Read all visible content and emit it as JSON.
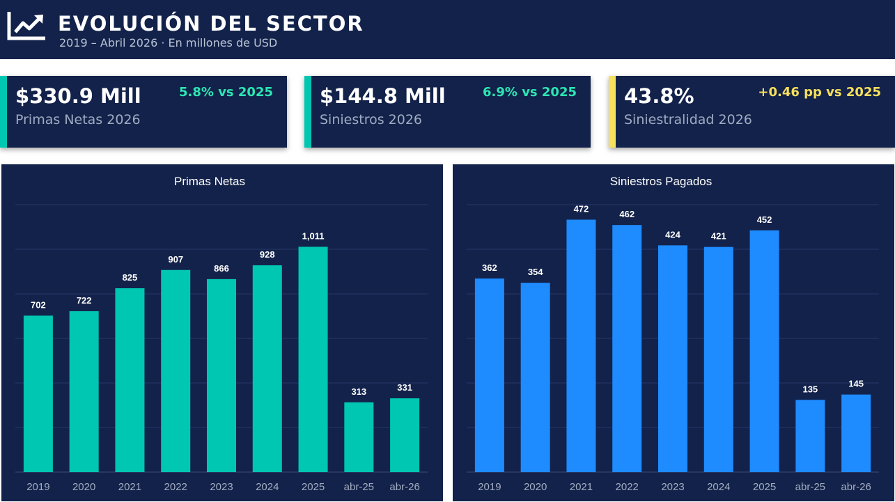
{
  "header": {
    "title": "EVOLUCIÓN DEL SECTOR",
    "subtitle": "2019 – Abril 2026 · En millones de USD",
    "icon": "trend-chart-icon"
  },
  "kpis": [
    {
      "value": "$330.9 Mill",
      "label": "Primas Netas 2026",
      "delta": "5.8% vs 2025",
      "accent_color": "#00c7b1",
      "delta_color": "#2ce6b3"
    },
    {
      "value": "$144.8 Mill",
      "label": "Siniestros 2026",
      "delta": "6.9% vs 2025",
      "accent_color": "#00c7b1",
      "delta_color": "#2ce6b3"
    },
    {
      "value": "43.8%",
      "label": "Siniestralidad 2026",
      "delta": "+0.46 pp vs 2025",
      "accent_color": "#f7e05b",
      "delta_color": "#f7e05b"
    }
  ],
  "chart_data": [
    {
      "type": "bar",
      "title": "Primas Netas",
      "categories": [
        "2019",
        "2020",
        "2021",
        "2022",
        "2023",
        "2024",
        "2025",
        "abr-25",
        "abr-26"
      ],
      "values": [
        702,
        722,
        825,
        907,
        866,
        928,
        1011,
        313,
        331
      ],
      "value_labels": [
        "702",
        "722",
        "825",
        "907",
        "866",
        "928",
        "1,011",
        "313",
        "331"
      ],
      "ylim": [
        0,
        1200
      ],
      "grid": true,
      "bar_color": "#00c7b1"
    },
    {
      "type": "bar",
      "title": "Siniestros Pagados",
      "categories": [
        "2019",
        "2020",
        "2021",
        "2022",
        "2023",
        "2024",
        "2025",
        "abr-25",
        "abr-26"
      ],
      "values": [
        362,
        354,
        472,
        462,
        424,
        421,
        452,
        135,
        145
      ],
      "value_labels": [
        "362",
        "354",
        "472",
        "462",
        "424",
        "421",
        "452",
        "135",
        "145"
      ],
      "ylim": [
        0,
        500
      ],
      "grid": true,
      "bar_color": "#1e8bff"
    }
  ]
}
